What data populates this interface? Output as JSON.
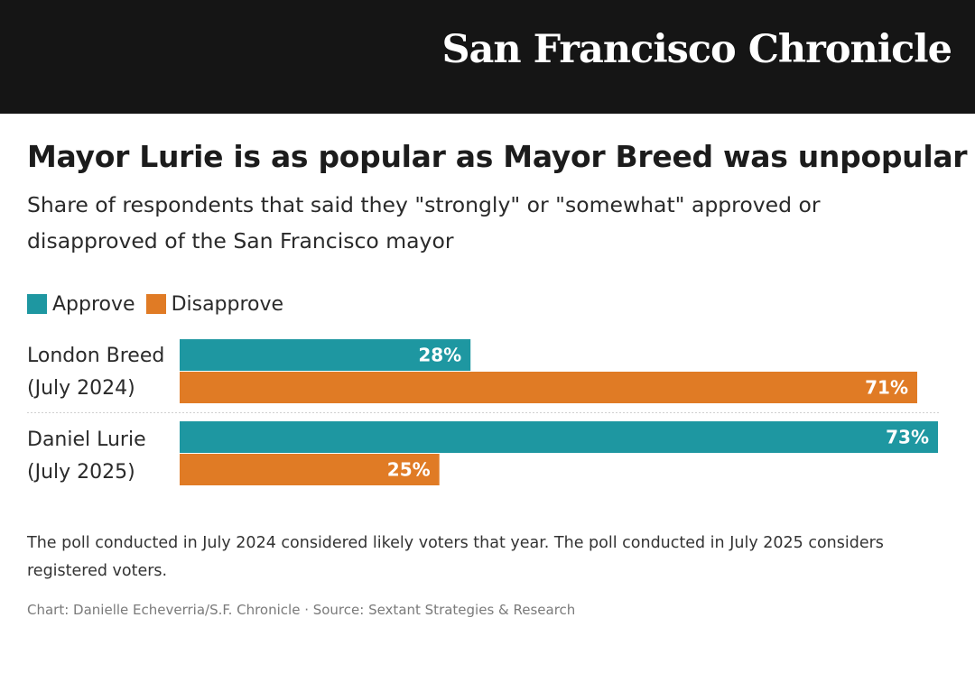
{
  "masthead": {
    "publication": "San Francisco Chronicle"
  },
  "chart_data": {
    "type": "bar",
    "orientation": "horizontal",
    "title": "Mayor Lurie is as popular as Mayor Breed was unpopular",
    "subtitle": "Share of respondents that said they \"strongly\" or \"somewhat\" approved or disapproved of the San Francisco mayor",
    "categories": [
      {
        "line1": "London Breed",
        "line2": "(July 2024)"
      },
      {
        "line1": "Daniel Lurie",
        "line2": "(July 2025)"
      }
    ],
    "series": [
      {
        "name": "Approve",
        "color": "#1e97a1",
        "values": [
          28,
          73
        ],
        "labels": [
          "28%",
          "73%"
        ]
      },
      {
        "name": "Disapprove",
        "color": "#e07b25",
        "values": [
          71,
          25
        ],
        "labels": [
          "71%",
          "25%"
        ]
      }
    ],
    "xlim": [
      0,
      73
    ],
    "unit": "%",
    "grid": false,
    "legend_position": "top-left"
  },
  "note": "The poll conducted in July 2024 considered likely voters that year. The poll conducted in July 2025 considers registered voters.",
  "credit": "Chart: Danielle Echeverria/S.F. Chronicle · Source: Sextant Strategies & Research"
}
